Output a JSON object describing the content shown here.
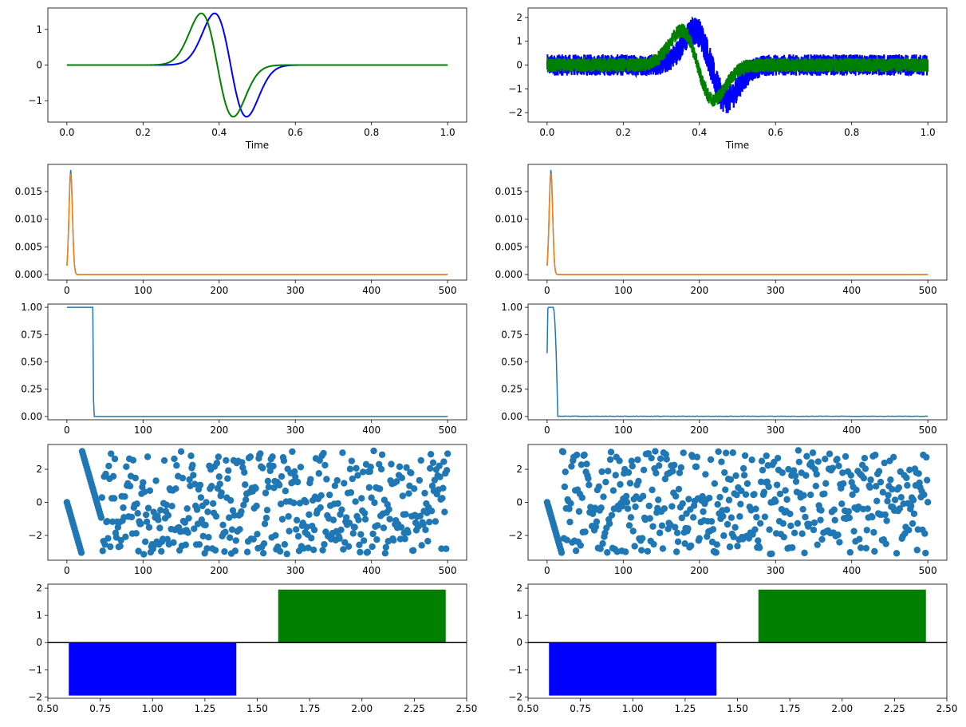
{
  "chart_data": [
    {
      "type": "line",
      "xlabel": "Time",
      "xlim": [
        -0.05,
        1.05
      ],
      "ylim": [
        -1.6,
        1.6
      ],
      "xticks": [
        "0.0",
        "0.2",
        "0.4",
        "0.6",
        "0.8",
        "1.0"
      ],
      "yticks": [
        "−1",
        "0",
        "1"
      ],
      "series": [
        {
          "color": "#0000ff",
          "center": 0.43,
          "amplitude": 1.45,
          "noise": 0
        },
        {
          "color": "#008000",
          "center": 0.395,
          "amplitude": 1.45,
          "noise": 0
        }
      ]
    },
    {
      "type": "line",
      "xlabel": "Time",
      "xlim": [
        -0.05,
        1.05
      ],
      "ylim": [
        -2.4,
        2.4
      ],
      "xticks": [
        "0.0",
        "0.2",
        "0.4",
        "0.6",
        "0.8",
        "1.0"
      ],
      "yticks": [
        "−2",
        "−1",
        "0",
        "1",
        "2"
      ],
      "series": [
        {
          "color": "#0000ff",
          "center": 0.43,
          "amplitude": 1.45,
          "noise": 0.45,
          "noise_peak": 0.65
        },
        {
          "color": "#008000",
          "center": 0.395,
          "amplitude": 1.45,
          "noise": 0.3
        }
      ]
    },
    {
      "type": "line",
      "xlabel": "",
      "xlim": [
        -25,
        525
      ],
      "ylim": [
        -0.001,
        0.0199
      ],
      "xticks": [
        "0",
        "100",
        "200",
        "300",
        "400",
        "500"
      ],
      "yticks": [
        "0.000",
        "0.005",
        "0.010",
        "0.015"
      ],
      "series": [
        {
          "color": "#1f77b4",
          "peak_x": 5,
          "peak": 0.0189
        },
        {
          "color": "#ff7f0e",
          "peak_x": 5,
          "peak": 0.0182
        }
      ]
    },
    {
      "type": "line",
      "xlabel": "",
      "xlim": [
        -25,
        525
      ],
      "ylim": [
        -0.001,
        0.0199
      ],
      "xticks": [
        "0",
        "100",
        "200",
        "300",
        "400",
        "500"
      ],
      "yticks": [
        "0.000",
        "0.005",
        "0.010",
        "0.015"
      ],
      "series": [
        {
          "color": "#1f77b4",
          "peak_x": 5,
          "peak": 0.0189
        },
        {
          "color": "#ff7f0e",
          "peak_x": 5,
          "peak": 0.0182
        }
      ]
    },
    {
      "type": "line",
      "xlabel": "",
      "xlim": [
        -25,
        525
      ],
      "ylim": [
        -0.03,
        1.03
      ],
      "xticks": [
        "0",
        "100",
        "200",
        "300",
        "400",
        "500"
      ],
      "yticks": [
        "0.00",
        "0.25",
        "0.50",
        "0.75",
        "1.00"
      ],
      "series": [
        {
          "color": "#1f77b4",
          "step_end": 36,
          "start": 1.0,
          "end": 0.0,
          "noise": 0
        }
      ]
    },
    {
      "type": "line",
      "xlabel": "",
      "xlim": [
        -25,
        525
      ],
      "ylim": [
        -0.03,
        1.03
      ],
      "xticks": [
        "0",
        "100",
        "200",
        "300",
        "400",
        "500"
      ],
      "yticks": [
        "0.00",
        "0.25",
        "0.50",
        "0.75",
        "1.00"
      ],
      "series": [
        {
          "color": "#1f77b4",
          "step_end": 14,
          "start": 0.58,
          "end": 0.0,
          "noise": 0.004
        }
      ]
    },
    {
      "type": "scatter",
      "xlabel": "",
      "xlim": [
        -25,
        525
      ],
      "ylim": [
        -3.5,
        3.5
      ],
      "xticks": [
        "0",
        "100",
        "200",
        "300",
        "400",
        "500"
      ],
      "yticks": [
        "−2",
        "0",
        "2"
      ],
      "series": [
        {
          "color": "#1f77b4",
          "ramp_end": 45,
          "ramp_slope": 0.16,
          "count": 501
        }
      ]
    },
    {
      "type": "scatter",
      "xlabel": "",
      "xlim": [
        -25,
        525
      ],
      "ylim": [
        -3.5,
        3.5
      ],
      "xticks": [
        "0",
        "100",
        "200",
        "300",
        "400",
        "500"
      ],
      "yticks": [
        "−2",
        "0",
        "2"
      ],
      "series": [
        {
          "color": "#1f77b4",
          "ramp_end": 20,
          "ramp_slope": 0.16,
          "count": 501
        }
      ]
    },
    {
      "type": "bar",
      "xlabel": "",
      "xlim": [
        0.5,
        2.5
      ],
      "ylim": [
        -2.05,
        2.15
      ],
      "xticks": [
        "0.50",
        "0.75",
        "1.00",
        "1.25",
        "1.50",
        "1.75",
        "2.00",
        "2.25",
        "2.50"
      ],
      "yticks": [
        "−2",
        "−1",
        "0",
        "1",
        "2"
      ],
      "categories": [
        1,
        2
      ],
      "values": [
        -1.95,
        1.95
      ],
      "colors": [
        "#0000ff",
        "#008000"
      ],
      "bar_width": 0.8
    },
    {
      "type": "bar",
      "xlabel": "",
      "xlim": [
        0.5,
        2.5
      ],
      "ylim": [
        -2.05,
        2.15
      ],
      "xticks": [
        "0.50",
        "0.75",
        "1.00",
        "1.25",
        "1.50",
        "1.75",
        "2.00",
        "2.25",
        "2.50"
      ],
      "yticks": [
        "−2",
        "−1",
        "0",
        "1",
        "2"
      ],
      "categories": [
        1,
        2
      ],
      "values": [
        -1.95,
        1.95
      ],
      "colors": [
        "#0000ff",
        "#008000"
      ],
      "bar_width": 0.8
    }
  ]
}
